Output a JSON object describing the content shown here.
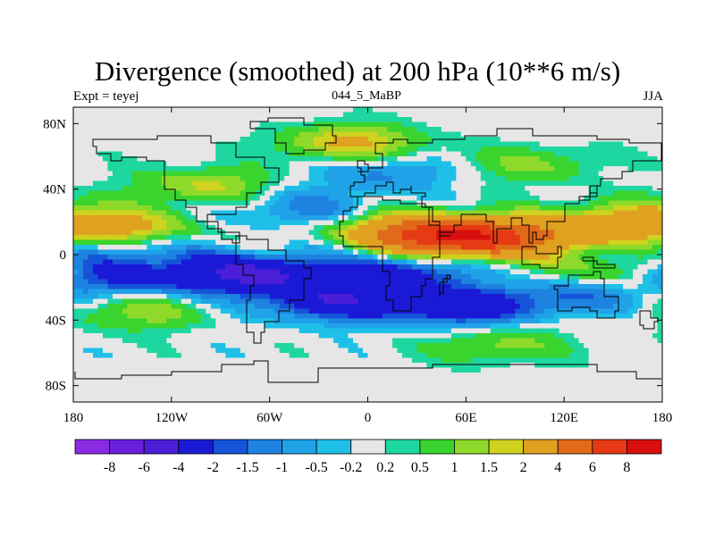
{
  "chart_data": {
    "type": "heatmap",
    "title": "Divergence (smoothed) at 200 hPa (10**6 m/s)",
    "subtitle_left": "Expt = teyej",
    "subtitle_center": "044_5_MaBP",
    "subtitle_right": "JJA",
    "xlabel": "",
    "ylabel": "",
    "xlim": [
      -180,
      180
    ],
    "ylim": [
      -90,
      90
    ],
    "x_ticks": [
      {
        "value": -180,
        "label": "180"
      },
      {
        "value": -120,
        "label": "120W"
      },
      {
        "value": -60,
        "label": "60W"
      },
      {
        "value": 0,
        "label": "0"
      },
      {
        "value": 60,
        "label": "60E"
      },
      {
        "value": 120,
        "label": "120E"
      },
      {
        "value": 180,
        "label": "180"
      }
    ],
    "y_ticks": [
      {
        "value": 80,
        "label": "80N"
      },
      {
        "value": 40,
        "label": "40N"
      },
      {
        "value": 0,
        "label": "0"
      },
      {
        "value": -40,
        "label": "40S"
      },
      {
        "value": -80,
        "label": "80S"
      }
    ],
    "contour_levels": [
      "-8",
      "-6",
      "-4",
      "-2",
      "-1.5",
      "-1",
      "-0.5",
      "-0.2",
      "0.2",
      "0.5",
      "1",
      "1.5",
      "2",
      "4",
      "6",
      "8"
    ],
    "colors": [
      "#8a2be2",
      "#6a1fdb",
      "#4b1ed8",
      "#1a1ad6",
      "#1554d9",
      "#1e83e0",
      "#20a2e8",
      "#1ec0e8",
      "#e6e6e6",
      "#1ed6a0",
      "#3ad42e",
      "#8ed92a",
      "#cfd21e",
      "#e0a020",
      "#e06a1a",
      "#e63a14",
      "#d90f0f"
    ],
    "features": [
      {
        "lon": -150,
        "lat": 15,
        "value": 2.5
      },
      {
        "lon": -150,
        "lat": 3,
        "value": -1.5
      },
      {
        "lon": -150,
        "lat": -14,
        "value": -2.5
      },
      {
        "lon": -140,
        "lat": -35,
        "value": 1.3
      },
      {
        "lon": -70,
        "lat": -12,
        "value": -4.5
      },
      {
        "lon": -20,
        "lat": -28,
        "value": -3.5
      },
      {
        "lon": 20,
        "lat": -10,
        "value": -2.5
      },
      {
        "lon": 55,
        "lat": -32,
        "value": -3.0
      },
      {
        "lon": 20,
        "lat": 14,
        "value": 3.0
      },
      {
        "lon": 60,
        "lat": 10,
        "value": 7.5
      },
      {
        "lon": 120,
        "lat": 12,
        "value": 2.5
      },
      {
        "lon": 150,
        "lat": -10,
        "value": 1.4
      },
      {
        "lon": 160,
        "lat": 22,
        "value": 2.0
      },
      {
        "lon": 80,
        "lat": -55,
        "value": 1.2
      },
      {
        "lon": -100,
        "lat": 42,
        "value": 1.6
      },
      {
        "lon": -10,
        "lat": 68,
        "value": 2.2
      },
      {
        "lon": 100,
        "lat": 55,
        "value": 1.1
      },
      {
        "lon": 10,
        "lat": 50,
        "value": -1.2
      },
      {
        "lon": -40,
        "lat": 28,
        "value": -1.3
      },
      {
        "lon": 120,
        "lat": -25,
        "value": -1.5
      }
    ]
  }
}
